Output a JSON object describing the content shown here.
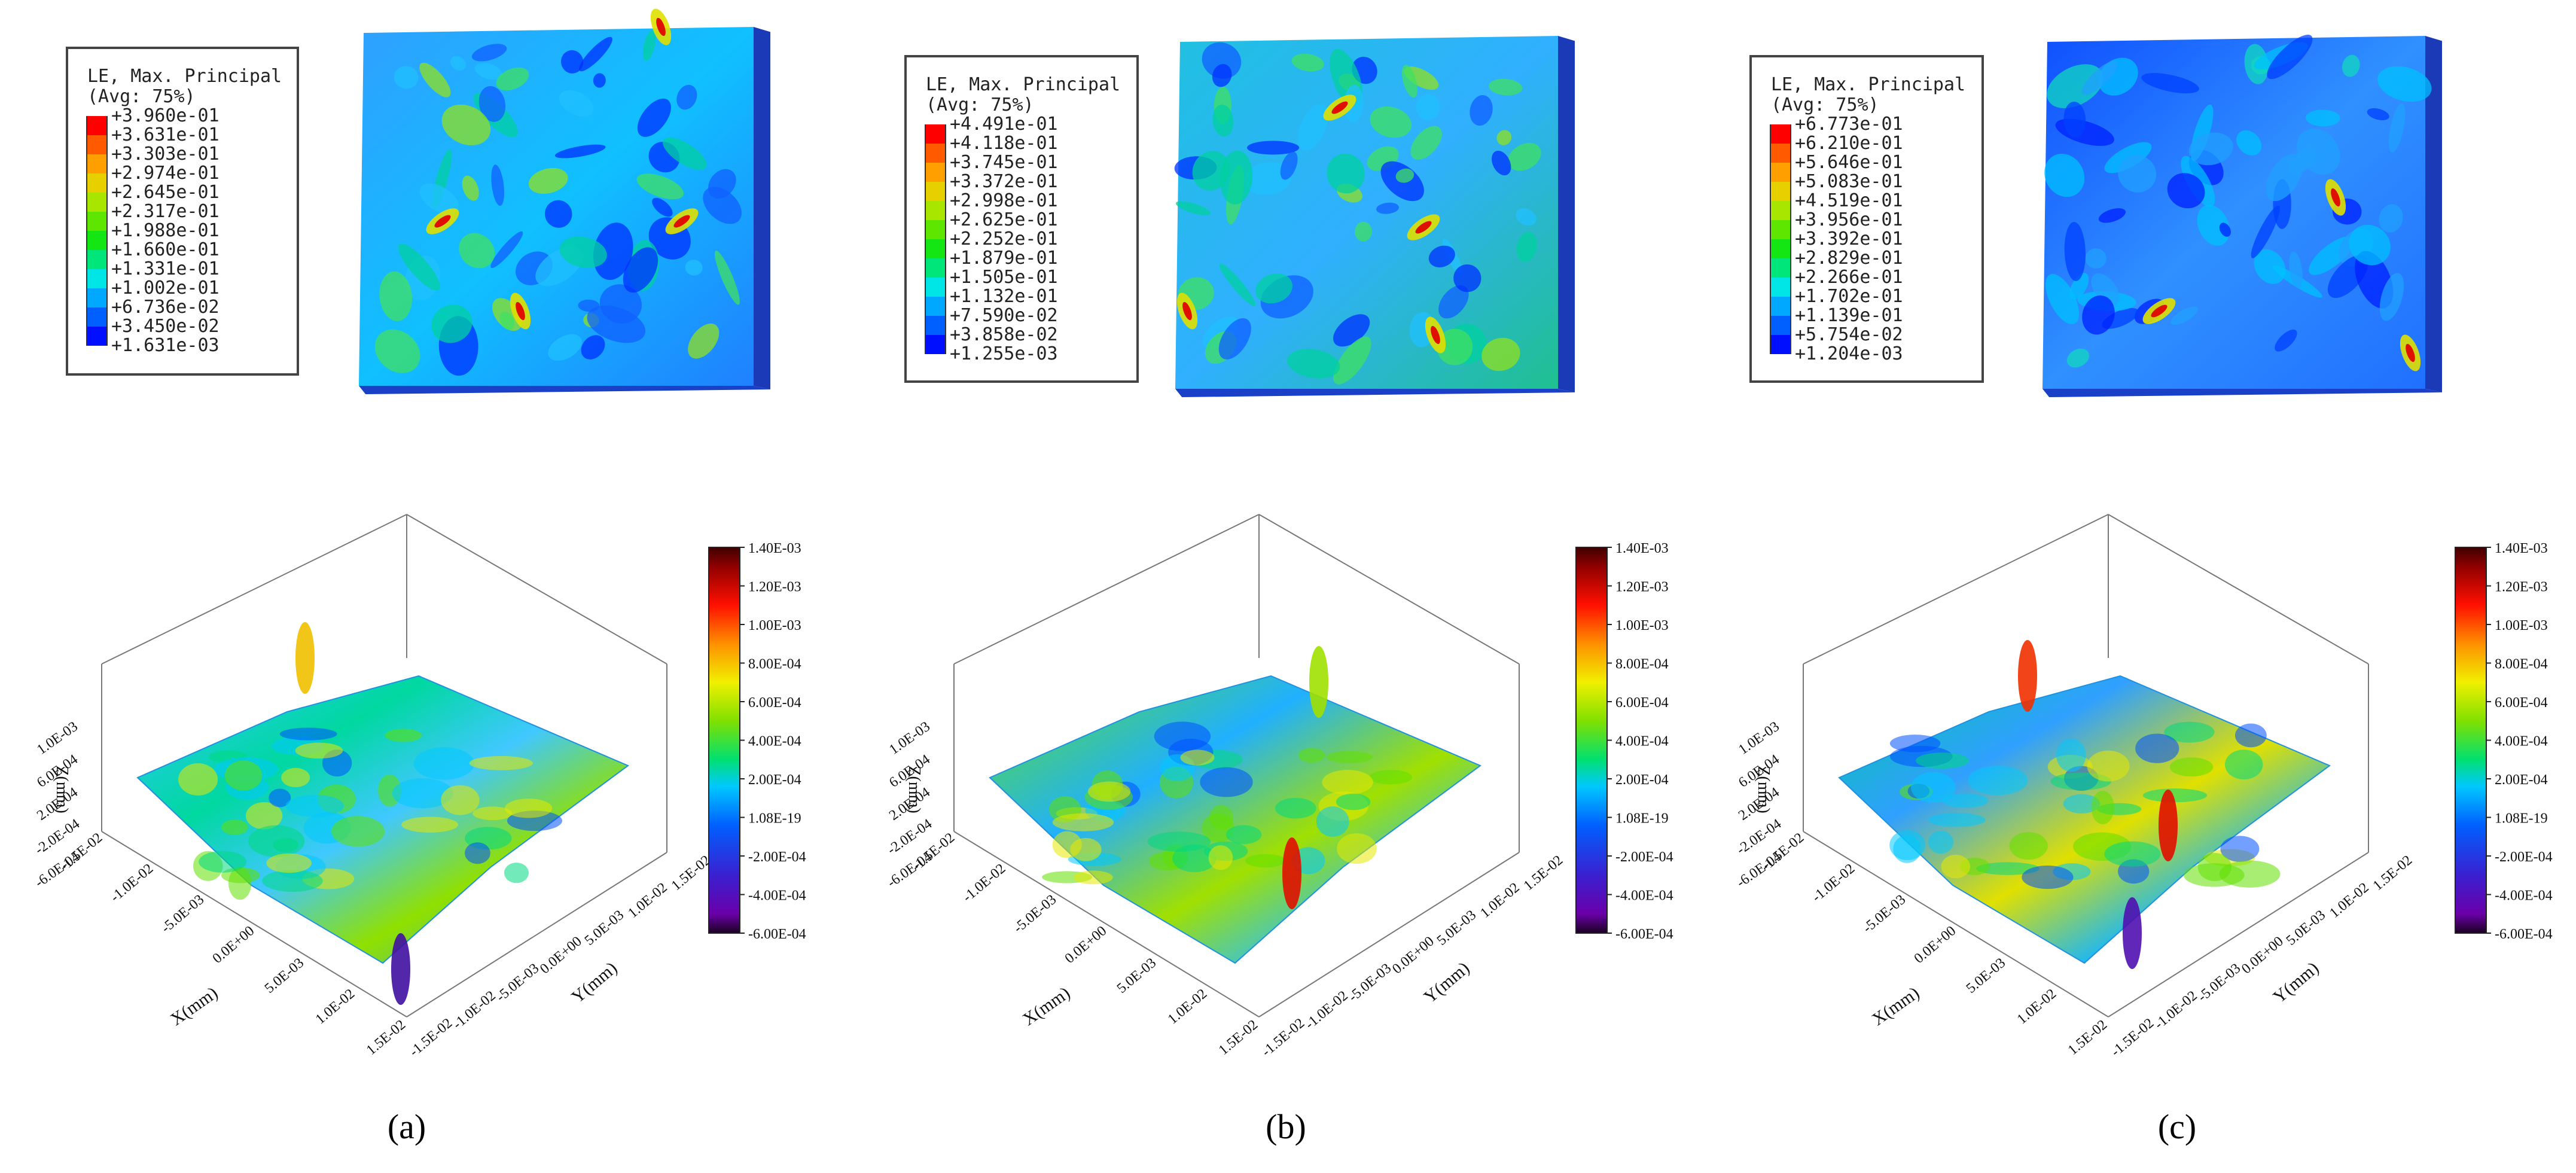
{
  "figure": {
    "panels": [
      {
        "label": "(a)",
        "fea_legend": {
          "title_line1": "LE, Max. Principal",
          "title_line2": "(Avg: 75%)",
          "values": [
            "+3.960e-01",
            "+3.631e-01",
            "+3.303e-01",
            "+2.974e-01",
            "+2.645e-01",
            "+2.317e-01",
            "+1.988e-01",
            "+1.660e-01",
            "+1.331e-01",
            "+1.002e-01",
            "+6.736e-02",
            "+3.450e-02",
            "+1.631e-03"
          ]
        }
      },
      {
        "label": "(b)",
        "fea_legend": {
          "title_line1": "LE, Max. Principal",
          "title_line2": "(Avg: 75%)",
          "values": [
            "+4.491e-01",
            "+4.118e-01",
            "+3.745e-01",
            "+3.372e-01",
            "+2.998e-01",
            "+2.625e-01",
            "+2.252e-01",
            "+1.879e-01",
            "+1.505e-01",
            "+1.132e-01",
            "+7.590e-02",
            "+3.858e-02",
            "+1.255e-03"
          ]
        }
      },
      {
        "label": "(c)",
        "fea_legend": {
          "title_line1": "LE, Max. Principal",
          "title_line2": "(Avg: 75%)",
          "values": [
            "+6.773e-01",
            "+6.210e-01",
            "+5.646e-01",
            "+5.083e-01",
            "+4.519e-01",
            "+3.956e-01",
            "+3.392e-01",
            "+2.829e-01",
            "+2.266e-01",
            "+1.702e-01",
            "+1.139e-01",
            "+5.754e-02",
            "+1.204e-03"
          ]
        }
      }
    ],
    "fea_band_colors": [
      "#ff0000",
      "#ff5a00",
      "#ff9f00",
      "#e6d000",
      "#a8e600",
      "#5fe600",
      "#14e614",
      "#00e67a",
      "#00e6e6",
      "#00a8ff",
      "#0060ff",
      "#0010ff"
    ],
    "surface_plot": {
      "x_label": "X(mm)",
      "y_label": "Y(mm)",
      "z_label": "Z(mm)",
      "x_ticks": [
        "-1.5E-02",
        "-1.0E-02",
        "-5.0E-03",
        "0.0E+00",
        "5.0E-03",
        "1.0E-02",
        "1.5E-02"
      ],
      "y_ticks": [
        "1.5E-02",
        "1.0E-02",
        "5.0E-03",
        "0.0E+00",
        "-5.0E-03",
        "-1.0E-02",
        "-1.5E-02"
      ],
      "z_ticks": [
        "1.0E-03",
        "6.0E-04",
        "2.0E-04",
        "-2.0E-04",
        "-6.0E-04"
      ],
      "colorbar_ticks": [
        "1.40E-03",
        "1.20E-03",
        "1.00E-03",
        "8.00E-04",
        "6.00E-04",
        "4.00E-04",
        "2.00E-04",
        "1.08E-19",
        "-2.00E-04",
        "-4.00E-04",
        "-6.00E-04"
      ]
    }
  }
}
